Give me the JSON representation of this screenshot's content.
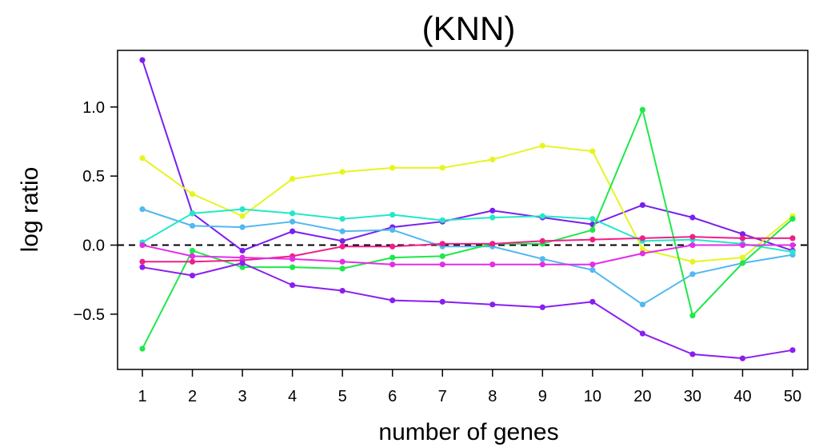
{
  "chart_data": {
    "type": "line",
    "title": "(KNN)",
    "xlabel": "number of genes",
    "ylabel": "log ratio",
    "categories": [
      "1",
      "2",
      "3",
      "4",
      "5",
      "6",
      "7",
      "8",
      "9",
      "10",
      "20",
      "30",
      "40",
      "50"
    ],
    "yticks": [
      -0.5,
      0.0,
      0.5,
      1.0
    ],
    "ytick_labels": [
      "−0.5",
      "0.0",
      "0.5",
      "1.0"
    ],
    "ylim": [
      -0.9,
      1.41
    ],
    "reference_line": 0,
    "grid": false,
    "series": [
      {
        "color": "#7a1ff0",
        "values": [
          1.34,
          0.23,
          -0.04,
          0.1,
          0.03,
          0.13,
          0.17,
          0.25,
          0.2,
          0.15,
          0.29,
          0.2,
          0.08,
          -0.04
        ]
      },
      {
        "color": "#e6f51e",
        "values": [
          0.63,
          0.37,
          0.21,
          0.48,
          0.53,
          0.56,
          0.56,
          0.62,
          0.72,
          0.68,
          -0.03,
          -0.12,
          -0.09,
          0.21
        ]
      },
      {
        "color": "#52b8f0",
        "values": [
          0.26,
          0.14,
          0.13,
          0.17,
          0.1,
          0.11,
          -0.01,
          -0.01,
          -0.1,
          -0.18,
          -0.43,
          -0.21,
          -0.13,
          -0.07
        ]
      },
      {
        "color": "#22e8c8",
        "values": [
          0.02,
          0.23,
          0.26,
          0.23,
          0.19,
          0.22,
          0.18,
          0.2,
          0.21,
          0.19,
          0.03,
          0.04,
          0.01,
          -0.05
        ]
      },
      {
        "color": "#1ee84a",
        "values": [
          -0.75,
          -0.04,
          -0.16,
          -0.16,
          -0.17,
          -0.09,
          -0.08,
          0.01,
          0.01,
          0.11,
          0.98,
          -0.51,
          -0.13,
          0.19
        ]
      },
      {
        "color": "#f01e8a",
        "values": [
          -0.12,
          -0.12,
          -0.11,
          -0.08,
          -0.01,
          -0.01,
          0.01,
          0.01,
          0.03,
          0.04,
          0.05,
          0.06,
          0.05,
          0.05
        ]
      },
      {
        "color": "#e22ee8",
        "values": [
          0.0,
          -0.08,
          -0.09,
          -0.1,
          -0.12,
          -0.14,
          -0.14,
          -0.14,
          -0.14,
          -0.14,
          -0.06,
          0.0,
          0.0,
          0.0
        ]
      },
      {
        "color": "#8a1ef0",
        "values": [
          -0.16,
          -0.22,
          -0.13,
          -0.29,
          -0.33,
          -0.4,
          -0.41,
          -0.43,
          -0.45,
          -0.41,
          -0.64,
          -0.79,
          -0.82,
          -0.76
        ]
      }
    ]
  }
}
